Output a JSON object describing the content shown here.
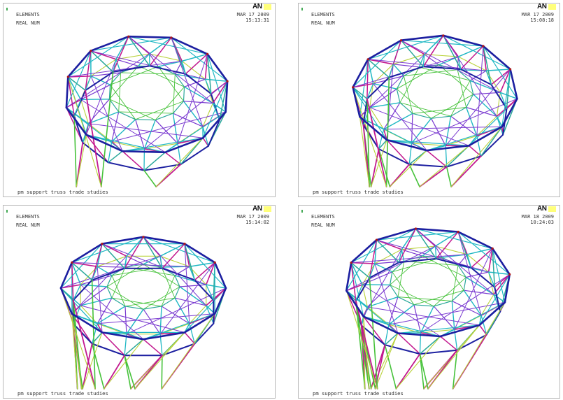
{
  "panels": [
    {
      "header_line1": "ELEMENTS",
      "header_line2": "REAL NUM",
      "date": "MAR 17 2009",
      "time": "15:13:31",
      "logo": "AN",
      "caption": "pm support truss trade studies"
    },
    {
      "header_line1": "ELEMENTS",
      "header_line2": "REAL NUM",
      "date": "MAR 17 2009",
      "time": "15:08:18",
      "logo": "AN",
      "caption": "pm support truss trade studies"
    },
    {
      "header_line1": "ELEMENTS",
      "header_line2": "REAL NUM",
      "date": "MAR 17 2009",
      "time": "15:14:02",
      "logo": "AN",
      "caption": "pm support truss trade studies"
    },
    {
      "header_line1": "ELEMENTS",
      "header_line2": "REAL NUM",
      "date": "MAR 18 2009",
      "time": "10:24:03",
      "logo": "AN",
      "caption": "pm support truss trade studies"
    }
  ],
  "colors": {
    "outer_ring": "#1c1fa0",
    "magenta": "#c2188f",
    "cyan": "#20b8c4",
    "teal": "#2aa89a",
    "green": "#46c23a",
    "lime": "#b9d23a",
    "violet": "#7a3ad0",
    "red_node": "#b01818"
  }
}
